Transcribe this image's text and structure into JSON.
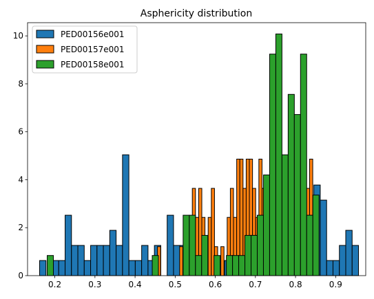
{
  "chart_data": {
    "type": "bar",
    "title": "Asphericity distribution",
    "xlabel": "",
    "ylabel": "",
    "xlim": [
      0.132,
      0.975
    ],
    "ylim": [
      0,
      10.55
    ],
    "xticks": [
      "0.2",
      "0.3",
      "0.4",
      "0.5",
      "0.6",
      "0.7",
      "0.8",
      "0.9"
    ],
    "yticks": [
      "0",
      "2",
      "4",
      "6",
      "8",
      "10"
    ],
    "legend_position": "upper-left",
    "series": [
      {
        "name": "PED00156e001",
        "color": "#1f77b4",
        "bin_edges": [
          0.162,
          0.1779,
          0.1938,
          0.2097,
          0.2256,
          0.2415,
          0.2574,
          0.2733,
          0.2892,
          0.3051,
          0.321,
          0.3369,
          0.3528,
          0.3687,
          0.3846,
          0.4005,
          0.4164,
          0.4323,
          0.4482,
          0.4641,
          0.48,
          0.4959,
          0.5118,
          0.5277,
          0.5436,
          0.5595,
          0.5754,
          0.5913,
          0.6072,
          0.6231,
          0.639,
          0.6549,
          0.6708,
          0.6867,
          0.7026,
          0.7185,
          0.7344,
          0.7503,
          0.7662,
          0.7821,
          0.798,
          0.8139,
          0.8298,
          0.8457,
          0.8616,
          0.8775,
          0.8934,
          0.9093,
          0.9252,
          0.9411,
          0.957
        ],
        "values": [
          0.63,
          0,
          0.63,
          0.63,
          2.52,
          1.26,
          1.26,
          0.63,
          1.26,
          1.26,
          1.26,
          1.89,
          1.26,
          5.04,
          0.63,
          0.63,
          1.26,
          0.63,
          1.26,
          0,
          2.52,
          1.26,
          1.26,
          1.26,
          0.63,
          1.26,
          0,
          0.63,
          0,
          0.63,
          0,
          0,
          0,
          0,
          0,
          0,
          0,
          0,
          0,
          0,
          0.63,
          0.63,
          3.15,
          3.78,
          3.15,
          0.63,
          0.63,
          1.26,
          1.89,
          1.26
        ]
      },
      {
        "name": "PED00157e001",
        "color": "#ff7f0e",
        "bin_edges": [
          0.4558,
          0.4637,
          0.4716,
          0.4795,
          0.4874,
          0.4953,
          0.5032,
          0.5111,
          0.519,
          0.5269,
          0.5348,
          0.5427,
          0.5506,
          0.5585,
          0.5664,
          0.5743,
          0.5822,
          0.5901,
          0.598,
          0.6059,
          0.6138,
          0.6217,
          0.6296,
          0.6375,
          0.6454,
          0.6533,
          0.6612,
          0.6691,
          0.677,
          0.6849,
          0.6928,
          0.7007,
          0.7086,
          0.7165,
          0.7244,
          0.7323,
          0.7402,
          0.7481,
          0.756,
          0.7639,
          0.7718,
          0.7797,
          0.7876,
          0.7955,
          0.8034,
          0.8113,
          0.8192,
          0.8271,
          0.835,
          0.8429,
          0.8508
        ],
        "values": [
          1.21,
          0,
          0,
          0,
          0,
          0,
          0,
          1.21,
          0,
          1.21,
          2.43,
          3.64,
          2.43,
          3.64,
          2.43,
          1.21,
          2.43,
          3.64,
          1.21,
          0,
          1.21,
          0,
          2.43,
          3.64,
          2.43,
          4.86,
          4.86,
          3.64,
          4.86,
          4.86,
          3.64,
          2.43,
          4.86,
          3.64,
          2.43,
          1.21,
          2.43,
          3.64,
          1.21,
          3.64,
          2.43,
          4.86,
          3.64,
          2.43,
          1.21,
          2.43,
          3.64,
          3.64,
          4.86,
          1.21
        ]
      },
      {
        "name": "PED00158e001",
        "color": "#2ca02c",
        "bin_edges": [
          0.181,
          0.1964,
          0.2118,
          0.2272,
          0.2426,
          0.258,
          0.2734,
          0.2888,
          0.3042,
          0.3196,
          0.335,
          0.3504,
          0.3658,
          0.3812,
          0.3966,
          0.412,
          0.4274,
          0.4428,
          0.4582,
          0.4736,
          0.489,
          0.5044,
          0.5198,
          0.5352,
          0.5506,
          0.566,
          0.5814,
          0.5968,
          0.6122,
          0.6276,
          0.643,
          0.6584,
          0.6738,
          0.6892,
          0.7046,
          0.72,
          0.7354,
          0.7508,
          0.7662,
          0.7816,
          0.797,
          0.8124,
          0.8278,
          0.8432,
          0.8586
        ],
        "values": [
          0.84,
          0,
          0,
          0,
          0,
          0,
          0,
          0,
          0,
          0,
          0,
          0,
          0,
          0,
          0,
          0,
          0,
          0.84,
          0,
          0,
          0,
          0,
          2.52,
          2.52,
          0.84,
          1.68,
          0,
          0.84,
          0,
          0.84,
          0.84,
          0.84,
          1.68,
          1.68,
          2.52,
          4.2,
          9.24,
          10.08,
          5.04,
          7.56,
          6.72,
          9.24,
          2.52,
          3.36
        ]
      }
    ]
  }
}
